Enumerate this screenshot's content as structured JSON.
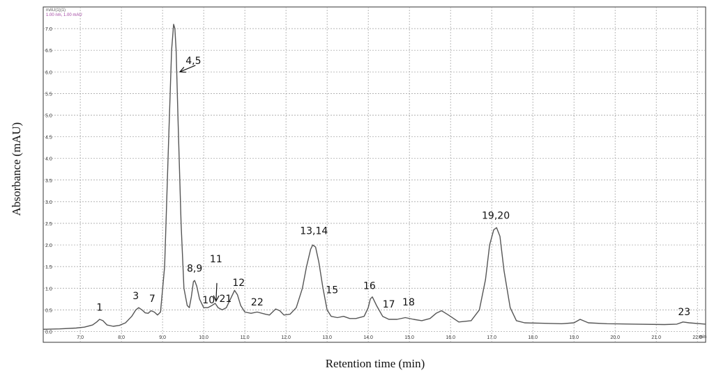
{
  "chart_data": {
    "type": "line",
    "header_lines": [
      "mAU(1)(1)",
      "1.00 nm, 1.00 mAU"
    ],
    "xlabel": "Retention time (min)",
    "ylabel": "Absorbance (mAU)",
    "x_unit": "min",
    "xlim": [
      6.1,
      22.2
    ],
    "ylim": [
      -0.25,
      7.5
    ],
    "x_ticks": [
      7.0,
      8.0,
      9.0,
      10.0,
      11.0,
      12.0,
      13.0,
      14.0,
      15.0,
      16.0,
      17.0,
      18.0,
      19.0,
      20.0,
      21.0,
      22.0
    ],
    "x_tick_labels": [
      "7.0",
      "8.0",
      "9.0",
      "10.0",
      "11.0",
      "12.0",
      "13.0",
      "14.0",
      "15.0",
      "16.0",
      "17.0",
      "18.0",
      "19.0",
      "20.0",
      "21.0",
      "22.0"
    ],
    "y_ticks": [
      0.0,
      0.5,
      1.0,
      1.5,
      2.0,
      2.5,
      3.0,
      3.5,
      4.0,
      4.5,
      5.0,
      5.5,
      6.0,
      6.5,
      7.0
    ],
    "y_tick_labels": [
      "0.0",
      "0.5",
      "1.0",
      "1.5",
      "2.0",
      "2.5",
      "3.0",
      "3.5",
      "4.0",
      "4.5",
      "5.0",
      "5.5",
      "6.0",
      "6.5",
      "7.0"
    ],
    "grid": true,
    "line_color": "#555555",
    "grid_color": "#9a9a9a",
    "series": [
      {
        "values": {
          "x": [
            6.1,
            6.5,
            6.9,
            7.1,
            7.3,
            7.4,
            7.47,
            7.55,
            7.65,
            7.8,
            7.95,
            8.1,
            8.25,
            8.35,
            8.42,
            8.5,
            8.58,
            8.65,
            8.72,
            8.8,
            8.88,
            8.95,
            9.05,
            9.15,
            9.22,
            9.27,
            9.3,
            9.33,
            9.38,
            9.45,
            9.52,
            9.6,
            9.65,
            9.7,
            9.75,
            9.78,
            9.83,
            9.9,
            10.0,
            10.1,
            10.2,
            10.28,
            10.35,
            10.45,
            10.55,
            10.65,
            10.75,
            10.82,
            10.9,
            11.0,
            11.15,
            11.3,
            11.5,
            11.6,
            11.75,
            11.85,
            11.95,
            12.1,
            12.25,
            12.4,
            12.5,
            12.6,
            12.65,
            12.72,
            12.8,
            12.9,
            13.0,
            13.1,
            13.25,
            13.4,
            13.55,
            13.7,
            13.9,
            14.0,
            14.05,
            14.1,
            14.2,
            14.35,
            14.5,
            14.7,
            14.9,
            15.1,
            15.3,
            15.5,
            15.65,
            15.78,
            15.95,
            16.2,
            16.5,
            16.7,
            16.85,
            16.95,
            17.05,
            17.12,
            17.2,
            17.3,
            17.45,
            17.6,
            17.8,
            18.2,
            18.7,
            19.0,
            19.15,
            19.35,
            19.8,
            20.5,
            21.2,
            21.5,
            21.65,
            21.8,
            22.2
          ],
          "y": [
            0.05,
            0.06,
            0.08,
            0.1,
            0.15,
            0.22,
            0.28,
            0.25,
            0.15,
            0.12,
            0.14,
            0.2,
            0.35,
            0.5,
            0.55,
            0.5,
            0.43,
            0.42,
            0.48,
            0.45,
            0.38,
            0.45,
            1.5,
            4.5,
            6.5,
            7.1,
            7.0,
            6.5,
            4.8,
            2.5,
            1.0,
            0.6,
            0.55,
            0.8,
            1.15,
            1.18,
            1.05,
            0.75,
            0.55,
            0.55,
            0.6,
            0.65,
            0.55,
            0.5,
            0.55,
            0.75,
            0.95,
            0.85,
            0.6,
            0.45,
            0.42,
            0.45,
            0.4,
            0.38,
            0.52,
            0.48,
            0.38,
            0.4,
            0.55,
            1.0,
            1.5,
            1.9,
            2.0,
            1.95,
            1.6,
            1.0,
            0.5,
            0.35,
            0.32,
            0.35,
            0.3,
            0.3,
            0.35,
            0.55,
            0.75,
            0.8,
            0.6,
            0.35,
            0.28,
            0.28,
            0.32,
            0.28,
            0.25,
            0.3,
            0.42,
            0.48,
            0.38,
            0.22,
            0.25,
            0.5,
            1.2,
            2.0,
            2.35,
            2.4,
            2.2,
            1.4,
            0.55,
            0.25,
            0.2,
            0.19,
            0.18,
            0.2,
            0.28,
            0.2,
            0.18,
            0.17,
            0.16,
            0.17,
            0.22,
            0.2,
            0.17
          ]
        }
      }
    ],
    "annotations": [
      {
        "text": "1",
        "x": 7.47,
        "y": 0.48
      },
      {
        "text": "3",
        "x": 8.35,
        "y": 0.75
      },
      {
        "text": "7",
        "x": 8.75,
        "y": 0.68
      },
      {
        "text": "4,5",
        "x": 9.75,
        "y": 6.18
      },
      {
        "text": "8,9",
        "x": 9.78,
        "y": 1.38
      },
      {
        "text": "11",
        "x": 10.3,
        "y": 1.6
      },
      {
        "text": "10",
        "x": 10.12,
        "y": 0.65
      },
      {
        "text": "21",
        "x": 10.53,
        "y": 0.68
      },
      {
        "text": "12",
        "x": 10.85,
        "y": 1.05
      },
      {
        "text": "22",
        "x": 11.3,
        "y": 0.6
      },
      {
        "text": "13,14",
        "x": 12.68,
        "y": 2.25
      },
      {
        "text": "15",
        "x": 13.12,
        "y": 0.88
      },
      {
        "text": "16",
        "x": 14.03,
        "y": 0.98
      },
      {
        "text": "17",
        "x": 14.5,
        "y": 0.55
      },
      {
        "text": "18",
        "x": 14.98,
        "y": 0.6
      },
      {
        "text": "19,20",
        "x": 17.1,
        "y": 2.6
      },
      {
        "text": "23",
        "x": 21.68,
        "y": 0.38
      }
    ],
    "arrows": [
      {
        "from_label": "4,5",
        "from": [
          9.8,
          6.15
        ],
        "to": [
          9.42,
          6.0
        ]
      },
      {
        "from_label": "11",
        "from": [
          10.32,
          1.12
        ],
        "to": [
          10.3,
          0.7
        ]
      }
    ]
  }
}
